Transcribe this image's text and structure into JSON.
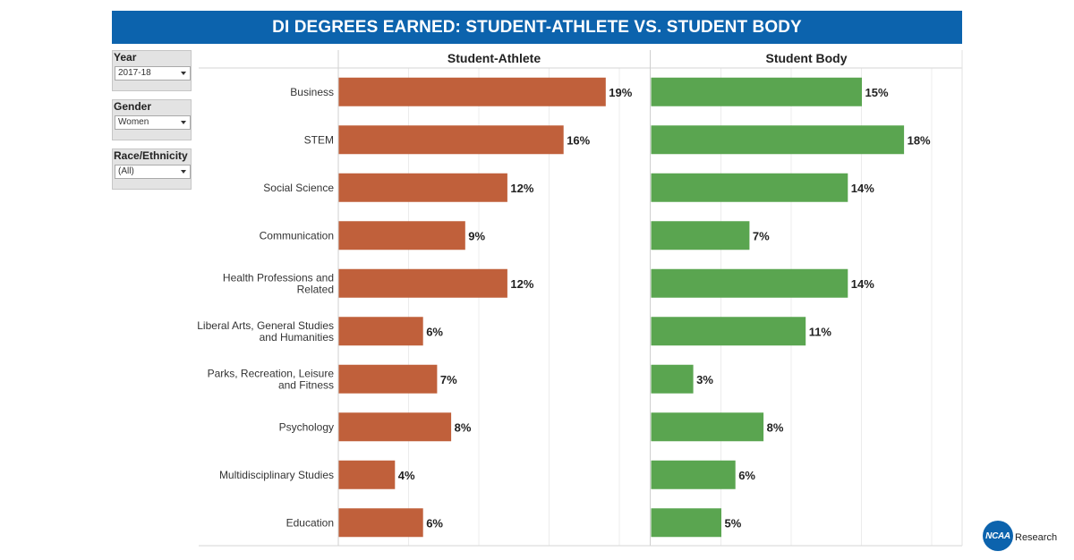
{
  "header": {
    "title": "DI DEGREES EARNED: STUDENT-ATHLETE VS. STUDENT BODY"
  },
  "filters": [
    {
      "label": "Year",
      "value": "2017-18"
    },
    {
      "label": "Gender",
      "value": "Women"
    },
    {
      "label": "Race/Ethnicity",
      "value": "(All)"
    }
  ],
  "logo": {
    "mark": "NCAA",
    "text": "Research"
  },
  "colors": {
    "athlete": "#c0603b",
    "body": "#5aa550",
    "title_bg": "#0c63ad"
  },
  "chart_data": {
    "type": "bar",
    "orientation": "horizontal",
    "categories": [
      [
        "Business"
      ],
      [
        "STEM"
      ],
      [
        "Social Science"
      ],
      [
        "Communication"
      ],
      [
        "Health Professions and",
        "Related"
      ],
      [
        "Liberal Arts, General Studies",
        "and Humanities"
      ],
      [
        "Parks, Recreation, Leisure",
        "and Fitness"
      ],
      [
        "Psychology"
      ],
      [
        "Multidisciplinary Studies"
      ],
      [
        "Education"
      ]
    ],
    "series": [
      {
        "name": "Student-Athlete",
        "color": "#c0603b",
        "values": [
          19,
          16,
          12,
          9,
          12,
          6,
          7,
          8,
          4,
          6
        ],
        "labels": [
          "19%",
          "16%",
          "12%",
          "9%",
          "12%",
          "6%",
          "7%",
          "8%",
          "4%",
          "6%"
        ]
      },
      {
        "name": "Student Body",
        "color": "#5aa550",
        "values": [
          15,
          18,
          14,
          7,
          14,
          11,
          3,
          8,
          6,
          5
        ],
        "labels": [
          "15%",
          "18%",
          "14%",
          "7%",
          "14%",
          "11%",
          "3%",
          "8%",
          "6%",
          "5%"
        ]
      }
    ],
    "unit": "%",
    "xlim": [
      0,
      22
    ],
    "grid": true
  }
}
